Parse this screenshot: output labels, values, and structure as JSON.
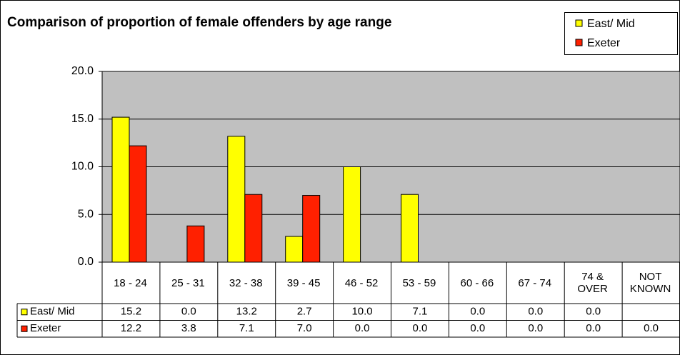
{
  "chart_data": {
    "type": "bar",
    "title": "Comparison of proportion of female offenders by age range",
    "categories": [
      "18 - 24",
      "25 - 31",
      "32 - 38",
      "39 - 45",
      "46 - 52",
      "53 - 59",
      "60 - 66",
      "67 - 74",
      "74 & OVER",
      "NOT KNOWN"
    ],
    "series": [
      {
        "name": "East/ Mid",
        "color": "#ffff00",
        "values": [
          15.2,
          0.0,
          13.2,
          2.7,
          10.0,
          7.1,
          0.0,
          0.0,
          0.0,
          null
        ],
        "value_labels": [
          "15.2",
          "0.0",
          "13.2",
          "2.7",
          "10.0",
          "7.1",
          "0.0",
          "0.0",
          "0.0",
          null
        ]
      },
      {
        "name": "Exeter",
        "color": "#ff2000",
        "values": [
          12.2,
          3.8,
          7.1,
          7.0,
          0.0,
          0.0,
          0.0,
          0.0,
          0.0,
          0.0
        ],
        "value_labels": [
          "12.2",
          "3.8",
          "7.1",
          "7.0",
          "0.0",
          "0.0",
          "0.0",
          "0.0",
          "0.0",
          "0.0"
        ]
      }
    ],
    "ylim": [
      0,
      20
    ],
    "yticks": [
      {
        "value": 0,
        "label": "0.0"
      },
      {
        "value": 5,
        "label": "5.0"
      },
      {
        "value": 10,
        "label": "10.0"
      },
      {
        "value": 15,
        "label": "15.0"
      },
      {
        "value": 20,
        "label": "20.0"
      }
    ],
    "grid": true
  }
}
